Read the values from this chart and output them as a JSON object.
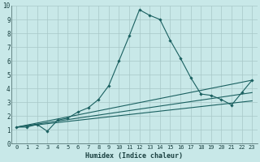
{
  "xlabel": "Humidex (Indice chaleur)",
  "bg_color": "#c8e8e8",
  "grid_color": "#a8c8c8",
  "line_color": "#1a6060",
  "xlim": [
    -0.5,
    23.5
  ],
  "ylim": [
    0,
    10
  ],
  "xticks": [
    0,
    1,
    2,
    3,
    4,
    5,
    6,
    7,
    8,
    9,
    10,
    11,
    12,
    13,
    14,
    15,
    16,
    17,
    18,
    19,
    20,
    21,
    22,
    23
  ],
  "yticks": [
    0,
    1,
    2,
    3,
    4,
    5,
    6,
    7,
    8,
    9,
    10
  ],
  "series": {
    "main": {
      "x": [
        0,
        1,
        2,
        3,
        4,
        5,
        6,
        7,
        8,
        9,
        10,
        11,
        12,
        13,
        14,
        15,
        16,
        17,
        18,
        19,
        20,
        21,
        22,
        23
      ],
      "y": [
        1.2,
        1.2,
        1.4,
        0.9,
        1.7,
        1.85,
        2.3,
        2.6,
        3.2,
        4.2,
        6.0,
        7.8,
        9.7,
        9.3,
        9.0,
        7.5,
        6.2,
        4.8,
        3.6,
        3.5,
        3.2,
        2.8,
        3.7,
        4.6
      ]
    },
    "linear1": {
      "x": [
        0,
        23
      ],
      "y": [
        1.2,
        4.6
      ]
    },
    "linear2": {
      "x": [
        0,
        23
      ],
      "y": [
        1.2,
        3.7
      ]
    },
    "linear3": {
      "x": [
        0,
        23
      ],
      "y": [
        1.2,
        3.1
      ]
    }
  }
}
